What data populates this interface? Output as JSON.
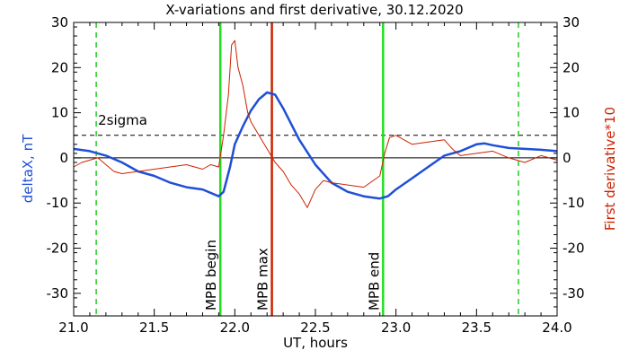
{
  "chart_data": {
    "type": "line",
    "title": "X-variations and first derivative, 30.12.2020",
    "xlabel": "UT, hours",
    "ylabel_left": "deltaX, nT",
    "ylabel_right": "First derivative*10",
    "xlim": [
      21.0,
      24.0
    ],
    "ylim": [
      -35,
      30
    ],
    "xticks": [
      21.0,
      21.5,
      22.0,
      22.5,
      23.0,
      23.5,
      24.0
    ],
    "xtick_labels": [
      "21.0",
      "21.5",
      "22.0",
      "22.5",
      "23.0",
      "23.5",
      "24.0"
    ],
    "yticks": [
      -30,
      -20,
      -10,
      0,
      10,
      20,
      30
    ],
    "ytick_labels": [
      "-30",
      "-20",
      "-10",
      "0",
      "10",
      "20",
      "30"
    ],
    "sigma_level": 5,
    "sigma_label": "2sigma",
    "zero_line": 0,
    "vertical_markers": [
      {
        "x": 21.14,
        "style": "dashed",
        "color": "#22cc22"
      },
      {
        "x": 21.91,
        "style": "solid",
        "color": "#22dd22",
        "label": "MPB begin"
      },
      {
        "x": 22.23,
        "style": "solid",
        "color": "#cc2200",
        "label": "MPB max"
      },
      {
        "x": 22.92,
        "style": "solid",
        "color": "#22dd22",
        "label": "MPB end"
      },
      {
        "x": 23.76,
        "style": "dashed",
        "color": "#22cc22"
      }
    ],
    "series": [
      {
        "color": "#1f4fd8",
        "axis": "left",
        "x": [
          21.0,
          21.1,
          21.2,
          21.3,
          21.4,
          21.5,
          21.6,
          21.7,
          21.8,
          21.9,
          21.93,
          21.97,
          22.0,
          22.05,
          22.1,
          22.15,
          22.2,
          22.25,
          22.3,
          22.4,
          22.5,
          22.6,
          22.7,
          22.8,
          22.9,
          22.95,
          23.0,
          23.1,
          23.2,
          23.3,
          23.4,
          23.5,
          23.55,
          23.6,
          23.7,
          23.8,
          23.9,
          24.0
        ],
        "values": [
          2.0,
          1.5,
          0.5,
          -1.0,
          -3.0,
          -4.0,
          -5.5,
          -6.5,
          -7.0,
          -8.5,
          -7.5,
          -2.0,
          3.0,
          7.0,
          10.5,
          13.0,
          14.5,
          14.0,
          11.0,
          4.0,
          -1.5,
          -5.5,
          -7.5,
          -8.5,
          -9.0,
          -8.5,
          -7.0,
          -4.5,
          -2.0,
          0.5,
          1.5,
          3.0,
          3.2,
          2.8,
          2.2,
          2.0,
          1.8,
          1.5
        ]
      },
      {
        "color": "#cc2200",
        "axis": "right",
        "x": [
          21.0,
          21.05,
          21.1,
          21.15,
          21.2,
          21.25,
          21.3,
          21.4,
          21.5,
          21.6,
          21.7,
          21.8,
          21.85,
          21.9,
          21.93,
          21.96,
          21.98,
          22.0,
          22.02,
          22.05,
          22.08,
          22.1,
          22.15,
          22.2,
          22.25,
          22.3,
          22.35,
          22.4,
          22.45,
          22.5,
          22.55,
          22.6,
          22.7,
          22.8,
          22.9,
          22.93,
          22.96,
          23.0,
          23.1,
          23.2,
          23.3,
          23.35,
          23.4,
          23.5,
          23.6,
          23.7,
          23.8,
          23.9,
          24.0
        ],
        "values": [
          -2.0,
          -1.0,
          -0.5,
          0.0,
          -1.5,
          -3.0,
          -3.5,
          -3.0,
          -2.5,
          -2.0,
          -1.5,
          -2.5,
          -1.5,
          -2.0,
          5.0,
          14.0,
          25.0,
          26.0,
          20.0,
          16.0,
          10.0,
          8.0,
          5.0,
          2.0,
          -1.0,
          -3.0,
          -6.0,
          -8.0,
          -11.0,
          -7.0,
          -5.0,
          -5.5,
          -6.0,
          -6.5,
          -4.0,
          1.0,
          4.5,
          5.0,
          3.0,
          3.5,
          4.0,
          2.0,
          0.5,
          1.0,
          1.5,
          0.0,
          -1.0,
          0.5,
          -0.5
        ]
      }
    ]
  }
}
